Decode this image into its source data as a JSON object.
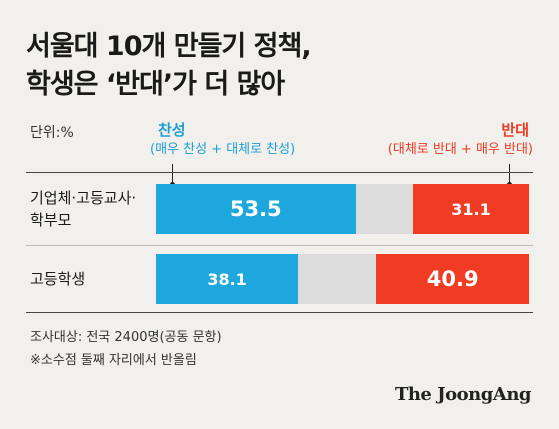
{
  "title_lines": [
    "서울대 10개 만들기 정책,",
    "학생은 ‘반대’가 더 많아"
  ],
  "unit_label": "단위:%",
  "legend": {
    "support": {
      "name": "찬성",
      "desc": "(매우 찬성 + 대체로 찬성)",
      "color": "#1ea7dc"
    },
    "oppose": {
      "name": "반대",
      "desc": "(대체로 반대 + 매우 반대)",
      "color": "#f03c22"
    }
  },
  "chart_data": {
    "type": "bar",
    "orientation": "horizontal-stacked",
    "xlim": [
      0,
      100
    ],
    "categories": [
      "기업체·고등교사·학부모",
      "고등학생"
    ],
    "category_lines": [
      [
        "기업체·고등교사·",
        "학부모"
      ],
      [
        "고등학생"
      ]
    ],
    "series": [
      {
        "name": "찬성",
        "values": [
          53.5,
          38.1
        ]
      },
      {
        "name": "반대",
        "values": [
          31.1,
          40.9
        ]
      }
    ],
    "label_sizes": [
      [
        21,
        16
      ],
      [
        16,
        21
      ]
    ]
  },
  "footnotes": [
    "조사대상: 전국 2400명(공동 문항)",
    "※소수점 둘째 자리에서 반올림"
  ],
  "brand": "The JoongAng"
}
